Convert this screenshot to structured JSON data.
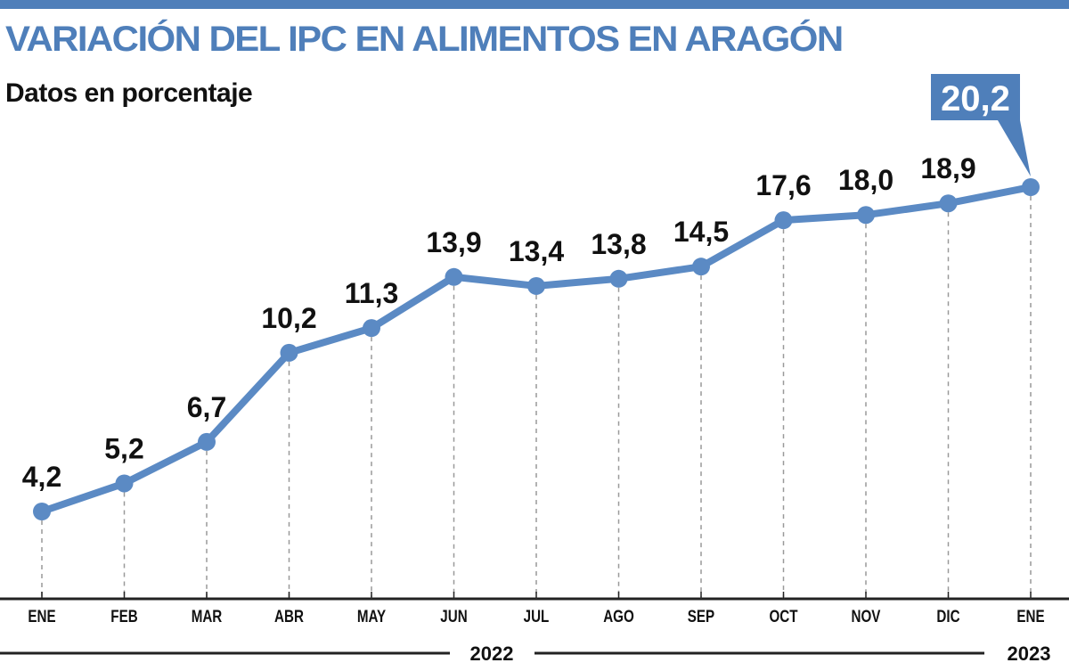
{
  "chart_data": {
    "type": "line",
    "title": "VARIACIÓN DEL IPC EN ALIMENTOS EN ARAGÓN",
    "subtitle": "Datos en porcentaje",
    "categories": [
      "ENE",
      "FEB",
      "MAR",
      "ABR",
      "MAY",
      "JUN",
      "JUL",
      "AGO",
      "SEP",
      "OCT",
      "NOV",
      "DIC",
      "ENE"
    ],
    "values": [
      4.2,
      5.2,
      6.7,
      10.2,
      11.3,
      13.9,
      13.4,
      13.8,
      14.5,
      17.6,
      18.0,
      18.9,
      20.2
    ],
    "labels": [
      "4,2",
      "5,2",
      "6,7",
      "10,2",
      "11,3",
      "13,9",
      "13,4",
      "13,8",
      "14,5",
      "17,6",
      "18,0",
      "18,9",
      "20,2"
    ],
    "years": [
      {
        "label": "2022"
      },
      {
        "label": "2023"
      }
    ],
    "highlight_index": 12,
    "grid": false,
    "colors": {
      "line": "#5b8ac4",
      "accent": "#4f7fba",
      "text": "#111111"
    }
  }
}
